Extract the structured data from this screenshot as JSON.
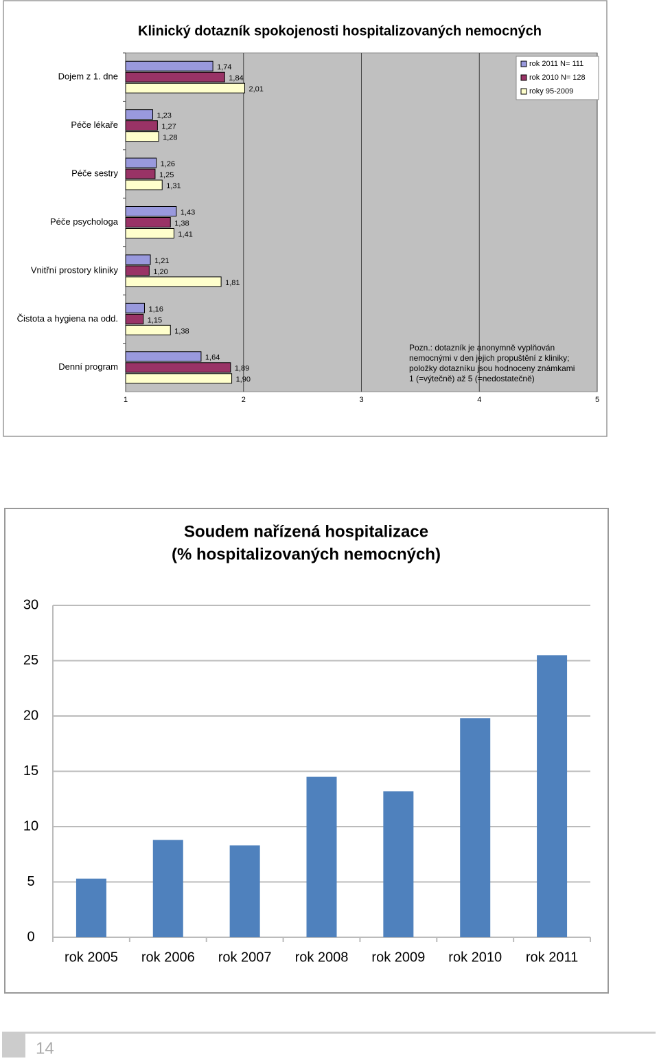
{
  "chart_data": [
    {
      "type": "hbar",
      "title": "Klinický dotazník spokojenosti hospitalizovaných nemocných",
      "categories": [
        "Dojem z 1. dne",
        "Péče lékaře",
        "Péče sestry",
        "Péče psychologa",
        "Vnitřní prostory kliniky",
        "Čistota a hygiena na odd.",
        "Denní program"
      ],
      "series": [
        {
          "name": "rok 2011 N= 111",
          "color": "#9999dd",
          "values": [
            1.74,
            1.23,
            1.26,
            1.43,
            1.21,
            1.16,
            1.64
          ],
          "value_labels": [
            "1,74",
            "1,23",
            "1,26",
            "1,43",
            "1,21",
            "1,16",
            "1,64"
          ]
        },
        {
          "name": "rok 2010 N= 128",
          "color": "#993366",
          "values": [
            1.84,
            1.27,
            1.25,
            1.38,
            1.2,
            1.15,
            1.89
          ],
          "value_labels": [
            "1,84",
            "1,27",
            "1,25",
            "1,38",
            "1,20",
            "1,15",
            "1,89"
          ]
        },
        {
          "name": "roky 95-2009",
          "color": "#ffffcc",
          "values": [
            2.01,
            1.28,
            1.31,
            1.41,
            1.81,
            1.38,
            1.9
          ],
          "value_labels": [
            "2,01",
            "1,28",
            "1,31",
            "1,41",
            "1,81",
            "1,38",
            "1,90"
          ]
        }
      ],
      "xlim": [
        1,
        5
      ],
      "xticks": [
        1,
        2,
        3,
        4,
        5
      ],
      "grid": true,
      "legend": "top-right",
      "annotation": [
        "Pozn.: dotazník je anonymně vyplňován",
        "nemocnými v den jejich propuštění z kliniky;",
        "položky dotazníku jsou hodnoceny známkami",
        "1 (=výtečně) až 5 (=nedostatečně)"
      ]
    },
    {
      "type": "bar",
      "title": [
        "Soudem nařízená hospitalizace",
        "(% hospitalizovaných nemocných)"
      ],
      "categories": [
        "rok 2005",
        "rok 2006",
        "rok 2007",
        "rok 2008",
        "rok 2009",
        "rok 2010",
        "rok 2011"
      ],
      "values": [
        5.3,
        8.8,
        8.3,
        14.5,
        13.2,
        19.8,
        25.5
      ],
      "color": "#4f81bd",
      "ylim": [
        0,
        30
      ],
      "yticks": [
        0,
        5,
        10,
        15,
        20,
        25,
        30
      ],
      "grid": true
    }
  ],
  "page_number": "14"
}
